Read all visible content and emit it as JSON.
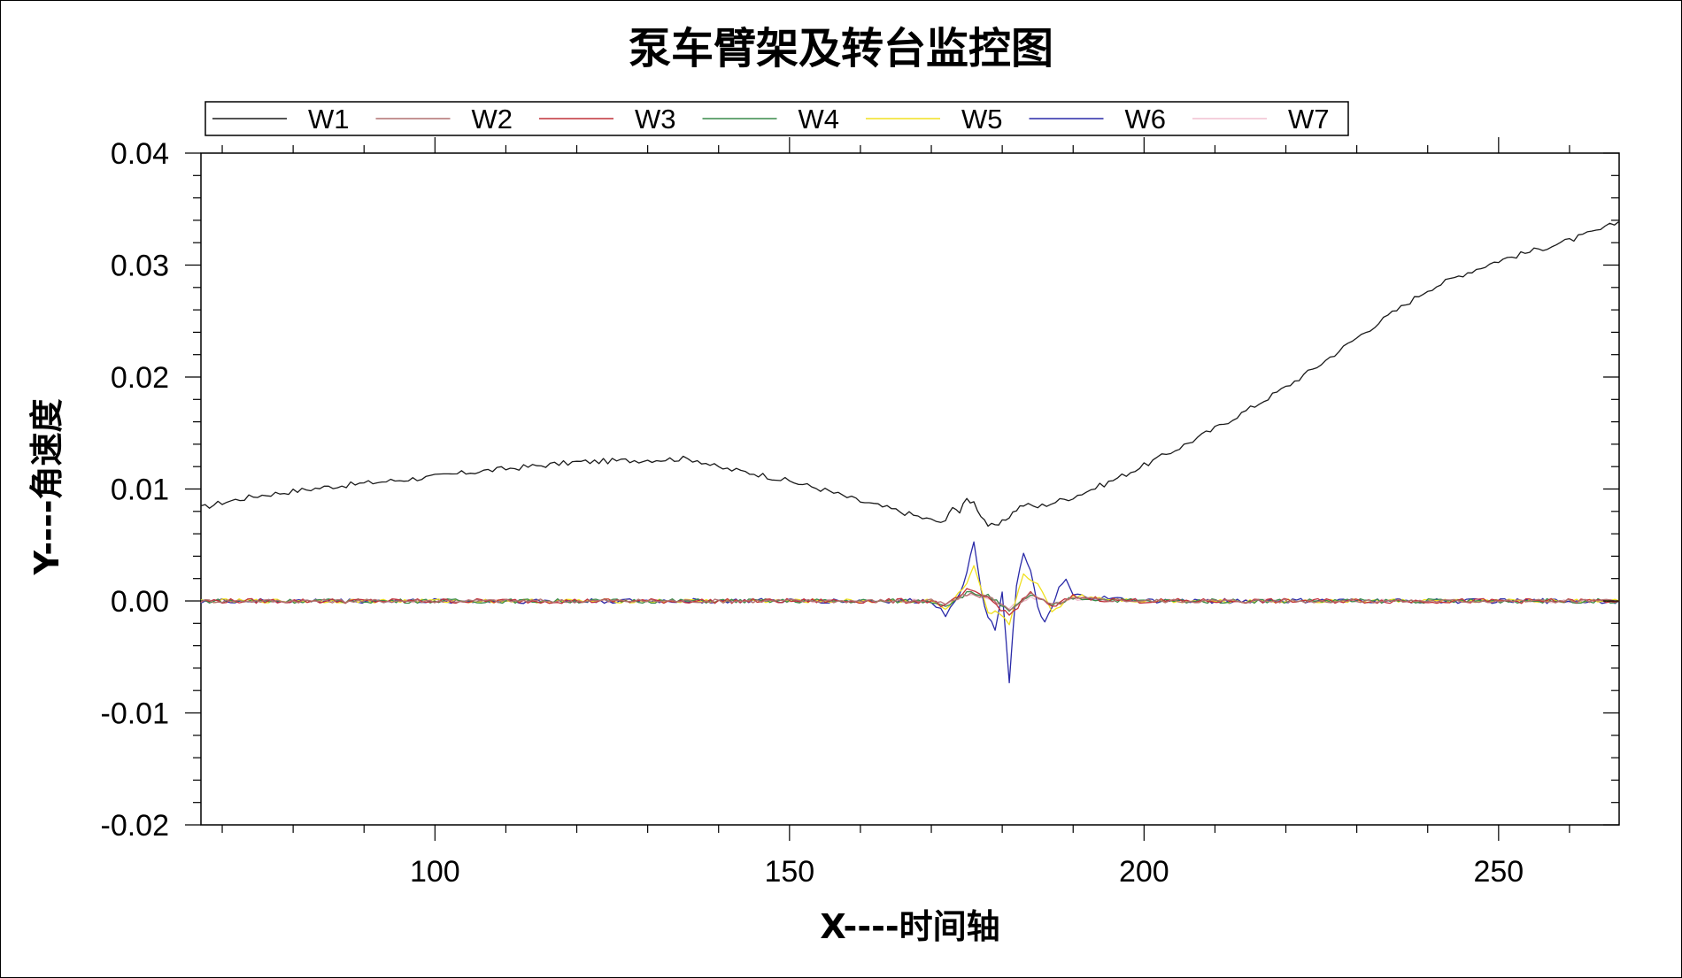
{
  "chart_data": {
    "type": "line",
    "title": "泵车臂架及转台监控图",
    "xlabel": "X----时间轴",
    "ylabel": "Y----角速度",
    "xlim": [
      67,
      267
    ],
    "ylim": [
      -0.02,
      0.04
    ],
    "x_ticks": [
      100,
      150,
      200,
      250
    ],
    "x_tick_labels": [
      "100",
      "150",
      "200",
      "250"
    ],
    "y_ticks": [
      -0.02,
      -0.01,
      0.0,
      0.01,
      0.02,
      0.03,
      0.04
    ],
    "y_tick_labels": [
      "-0.02",
      "-0.01",
      "0.00",
      "0.01",
      "0.02",
      "0.03",
      "0.04"
    ],
    "grid": false,
    "legend_position": "top",
    "series": [
      {
        "name": "W1",
        "color": "#1a1a1a",
        "x": [
          67,
          70,
          75,
          80,
          85,
          90,
          95,
          100,
          105,
          110,
          115,
          120,
          125,
          130,
          135,
          137,
          140,
          145,
          150,
          155,
          160,
          165,
          170,
          172,
          173,
          174,
          175,
          176,
          177,
          178,
          179,
          180,
          181,
          182,
          183,
          185,
          190,
          195,
          200,
          205,
          210,
          215,
          220,
          225,
          230,
          235,
          240,
          245,
          250,
          255,
          260,
          265,
          267
        ],
        "y": [
          0.0083,
          0.0088,
          0.0094,
          0.0098,
          0.0102,
          0.0105,
          0.0108,
          0.0111,
          0.0115,
          0.0118,
          0.0121,
          0.0124,
          0.0125,
          0.0126,
          0.0127,
          0.0126,
          0.0119,
          0.0114,
          0.0107,
          0.0099,
          0.0089,
          0.0081,
          0.0072,
          0.007,
          0.0086,
          0.0079,
          0.0091,
          0.0088,
          0.0077,
          0.0068,
          0.0066,
          0.007,
          0.0076,
          0.0082,
          0.0086,
          0.0084,
          0.0093,
          0.0106,
          0.0121,
          0.0137,
          0.0154,
          0.0172,
          0.0191,
          0.0212,
          0.0235,
          0.0257,
          0.0278,
          0.0292,
          0.0304,
          0.0313,
          0.0322,
          0.0333,
          0.0339
        ]
      },
      {
        "name": "W2",
        "color": "#b07070",
        "x": [
          67,
          170,
          172,
          175,
          178,
          181,
          184,
          187,
          190,
          195,
          200,
          267
        ],
        "y": [
          0.0,
          0.0,
          -0.0003,
          0.0006,
          0.0004,
          -0.0008,
          0.0006,
          -0.0004,
          0.0002,
          0.0001,
          0.0,
          0.0
        ]
      },
      {
        "name": "W3",
        "color": "#c0303a",
        "x": [
          67,
          170,
          172,
          175,
          178,
          181,
          184,
          187,
          190,
          195,
          200,
          267
        ],
        "y": [
          0.0,
          0.0,
          -0.0005,
          0.0009,
          0.0003,
          -0.0013,
          0.0008,
          -0.0006,
          0.0004,
          0.0001,
          0.0,
          0.0
        ]
      },
      {
        "name": "W4",
        "color": "#3a8a4a",
        "x": [
          67,
          170,
          172,
          175,
          178,
          181,
          184,
          187,
          190,
          195,
          200,
          267
        ],
        "y": [
          0.0,
          0.0,
          -0.0004,
          0.0007,
          0.0005,
          -0.001,
          0.0006,
          -0.0005,
          0.0003,
          0.0001,
          0.0,
          0.0
        ]
      },
      {
        "name": "W5",
        "color": "#f0e020",
        "x": [
          67,
          170,
          172,
          175,
          176,
          177,
          178,
          179,
          181,
          183,
          185,
          187,
          190,
          195,
          200,
          267
        ],
        "y": [
          0.0,
          0.0,
          -0.0008,
          0.0015,
          0.003,
          0.001,
          -0.0012,
          -0.001,
          -0.002,
          0.0025,
          0.0015,
          -0.001,
          0.0005,
          0.0002,
          0.0,
          0.0
        ]
      },
      {
        "name": "W6",
        "color": "#2a2aa8",
        "x": [
          67,
          170,
          172,
          174,
          175,
          176,
          177,
          178,
          179,
          180,
          181,
          182,
          183,
          184,
          185,
          186,
          187,
          188,
          189,
          190,
          195,
          200,
          267
        ],
        "y": [
          0.0,
          0.0,
          -0.0012,
          0.0008,
          0.0025,
          0.0053,
          0.001,
          -0.0015,
          -0.0025,
          0.001,
          -0.0072,
          0.0015,
          0.0042,
          0.0025,
          -0.0005,
          -0.002,
          -0.0008,
          0.0012,
          0.0018,
          0.0005,
          0.0002,
          0.0,
          0.0
        ]
      },
      {
        "name": "W7",
        "color": "#f0c0d0",
        "x": [
          67,
          170,
          172,
          175,
          178,
          181,
          184,
          187,
          190,
          195,
          200,
          267
        ],
        "y": [
          0.0,
          0.0,
          -0.0003,
          0.0005,
          0.0003,
          -0.0006,
          0.0004,
          -0.0003,
          0.0002,
          0.0001,
          0.0,
          0.0
        ]
      }
    ]
  }
}
